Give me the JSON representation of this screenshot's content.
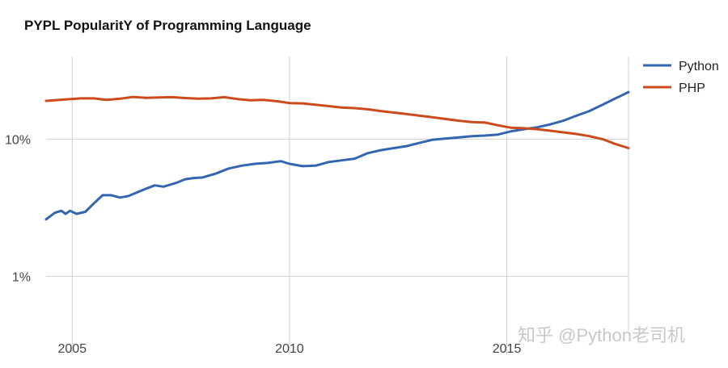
{
  "title": "PYPL PopularitY of Programming Language",
  "watermark": "知乎 @Python老司机",
  "colors": {
    "grid": "#d0d0d0",
    "Python": "#3366b0",
    "PHP": "#cc4a1c"
  },
  "chart_data": {
    "type": "line",
    "title": "PYPL PopularitY of Programming Language",
    "xlabel": "",
    "ylabel": "",
    "y_scale": "log",
    "ylim": [
      0.4,
      40
    ],
    "xlim": [
      2004.4,
      2017.8
    ],
    "x_ticks": [
      2005,
      2010,
      2015
    ],
    "x_tick_labels": [
      "2005",
      "2010",
      "2015"
    ],
    "y_ticks": [
      1,
      10
    ],
    "y_tick_labels": [
      "1%",
      "10%"
    ],
    "grid": true,
    "legend": "top-right",
    "series": [
      {
        "name": "Python",
        "color": "#3366b0",
        "x": [
          2004.4,
          2004.6,
          2004.75,
          2004.85,
          2004.95,
          2005.1,
          2005.3,
          2005.5,
          2005.7,
          2005.9,
          2006.1,
          2006.3,
          2006.5,
          2006.7,
          2006.9,
          2007.1,
          2007.4,
          2007.6,
          2007.8,
          2008.0,
          2008.3,
          2008.6,
          2008.9,
          2009.2,
          2009.5,
          2009.8,
          2010.0,
          2010.3,
          2010.6,
          2010.9,
          2011.2,
          2011.5,
          2011.8,
          2012.1,
          2012.4,
          2012.7,
          2013.0,
          2013.3,
          2013.6,
          2013.9,
          2014.2,
          2014.5,
          2014.8,
          2015.1,
          2015.4,
          2015.7,
          2016.0,
          2016.3,
          2016.6,
          2016.9,
          2017.2,
          2017.5,
          2017.8
        ],
        "values": [
          2.6,
          2.9,
          3.0,
          2.85,
          3.0,
          2.85,
          2.95,
          3.4,
          3.9,
          3.9,
          3.75,
          3.85,
          4.1,
          4.35,
          4.6,
          4.5,
          4.8,
          5.1,
          5.2,
          5.25,
          5.6,
          6.1,
          6.4,
          6.6,
          6.7,
          6.9,
          6.6,
          6.35,
          6.4,
          6.8,
          7.0,
          7.2,
          7.9,
          8.3,
          8.6,
          8.9,
          9.4,
          9.9,
          10.1,
          10.3,
          10.5,
          10.6,
          10.8,
          11.4,
          11.8,
          12.2,
          12.8,
          13.6,
          14.8,
          16.0,
          17.8,
          19.8,
          22.0
        ]
      },
      {
        "name": "PHP",
        "color": "#cc4a1c",
        "x": [
          2004.4,
          2004.8,
          2005.2,
          2005.5,
          2005.8,
          2006.1,
          2006.4,
          2006.7,
          2007.0,
          2007.3,
          2007.6,
          2007.9,
          2008.2,
          2008.5,
          2008.8,
          2009.1,
          2009.4,
          2009.7,
          2010.0,
          2010.3,
          2010.6,
          2010.9,
          2011.2,
          2011.5,
          2011.8,
          2012.1,
          2012.4,
          2012.7,
          2013.0,
          2013.3,
          2013.6,
          2013.9,
          2014.2,
          2014.5,
          2014.8,
          2015.1,
          2015.4,
          2015.7,
          2016.0,
          2016.3,
          2016.6,
          2016.9,
          2017.2,
          2017.5,
          2017.8
        ],
        "values": [
          19.0,
          19.4,
          19.8,
          19.8,
          19.3,
          19.7,
          20.3,
          20.0,
          20.1,
          20.2,
          19.9,
          19.7,
          19.8,
          20.2,
          19.6,
          19.2,
          19.3,
          18.9,
          18.3,
          18.2,
          17.8,
          17.4,
          17.0,
          16.8,
          16.5,
          16.0,
          15.6,
          15.2,
          14.8,
          14.4,
          14.0,
          13.6,
          13.3,
          13.2,
          12.6,
          12.1,
          12.0,
          11.8,
          11.5,
          11.2,
          10.9,
          10.5,
          10.0,
          9.2,
          8.6
        ]
      }
    ]
  }
}
